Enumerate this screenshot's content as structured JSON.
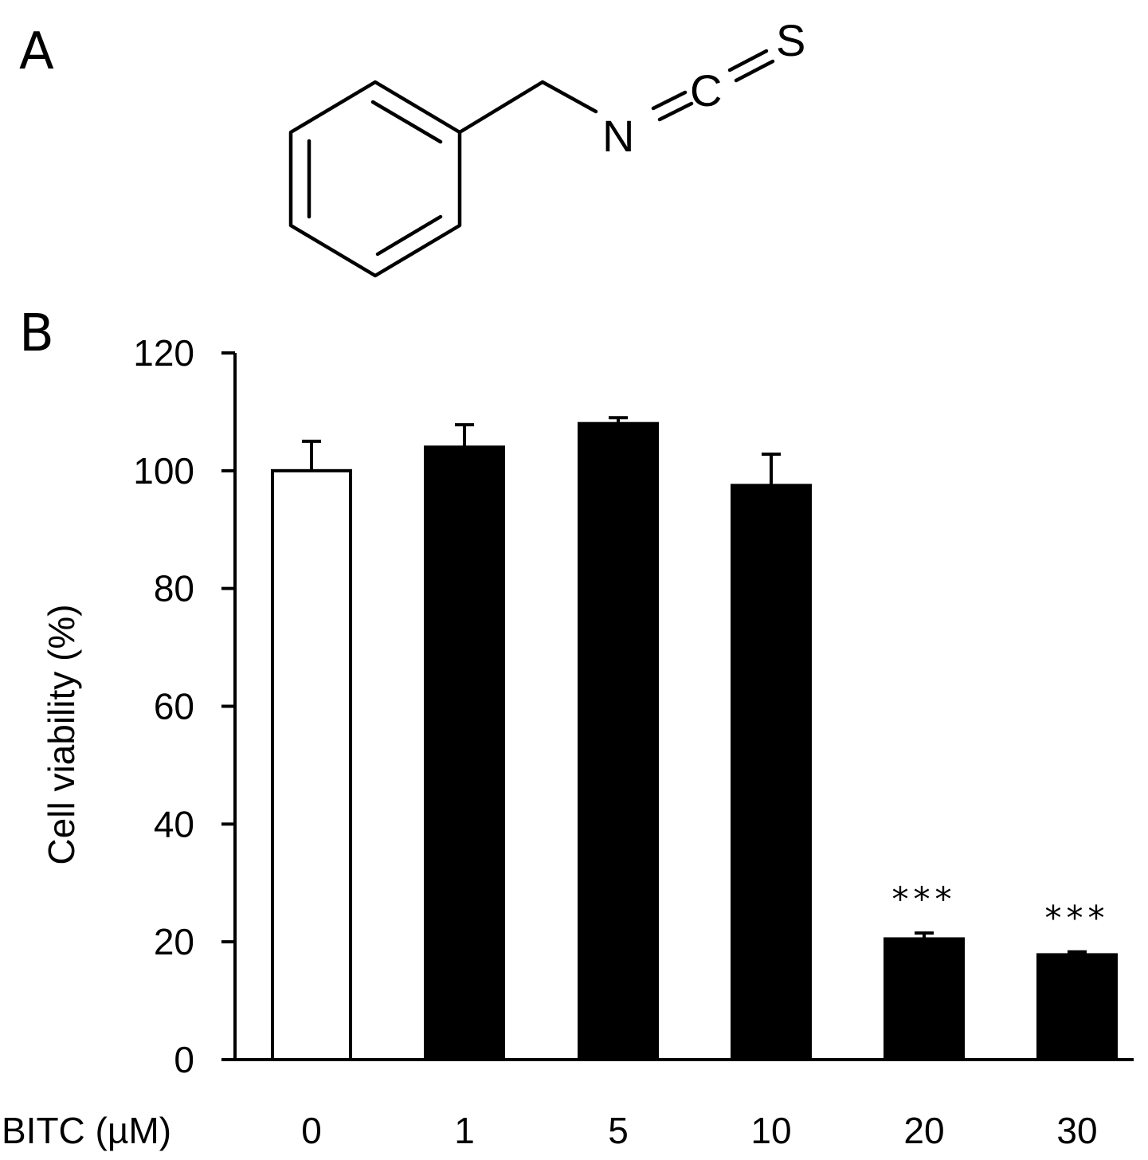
{
  "panels": {
    "a_label": "A",
    "b_label": "B"
  },
  "molecule": {
    "atoms": [
      "N",
      "C",
      "S"
    ]
  },
  "chart_data": {
    "type": "bar",
    "x_axis_label": "BITC (µM)",
    "ylabel": "Cell viability (%)",
    "categories": [
      "0",
      "1",
      "5",
      "10",
      "20",
      "30"
    ],
    "values": [
      100,
      104,
      108,
      97.5,
      20.5,
      17.8
    ],
    "errors": [
      5,
      3.8,
      1,
      5.3,
      1,
      0.5
    ],
    "annotations": [
      "",
      "",
      "",
      "",
      "***",
      "***"
    ],
    "bar_fills": [
      "#ffffff",
      "#000000",
      "#000000",
      "#000000",
      "#000000",
      "#000000"
    ],
    "ylim": [
      0,
      120
    ],
    "yticks": [
      0,
      20,
      40,
      60,
      80,
      100,
      120
    ],
    "grid": false,
    "legend": "none"
  },
  "colors": {
    "ink": "#000000",
    "background": "#ffffff"
  }
}
